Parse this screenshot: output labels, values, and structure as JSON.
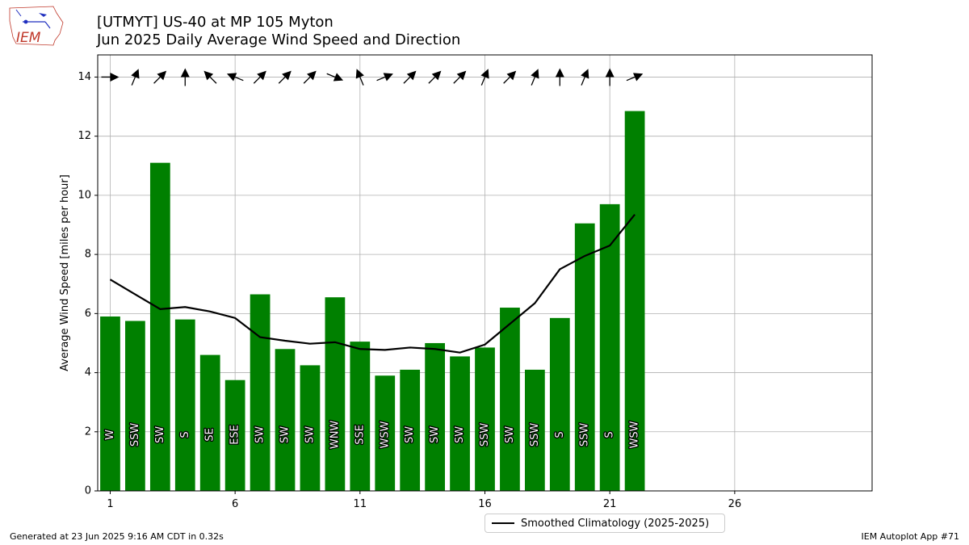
{
  "header": {
    "title_line1": "[UTMYT] US-40 at MP 105 Myton",
    "title_line2": "Jun 2025 Daily Average Wind Speed and Direction"
  },
  "logo": {
    "text": "IEM"
  },
  "footer": {
    "generated": "Generated at 23 Jun 2025 9:16 AM CDT in 0.32s",
    "app": "IEM Autoplot App #71"
  },
  "legend": {
    "label": "Smoothed Climatology (2025-2025)"
  },
  "colors": {
    "bar": "#008000",
    "line": "#000000",
    "grid": "#b0b0b0"
  },
  "chart_data": {
    "type": "bar",
    "title": "[UTMYT] US-40 at MP 105 Myton / Jun 2025 Daily Average Wind Speed and Direction",
    "xlabel": "",
    "ylabel": "Average Wind Speed [miles per hour]",
    "xlim": [
      0.5,
      31.5
    ],
    "ylim": [
      0,
      14.75
    ],
    "xticks": [
      1,
      6,
      11,
      16,
      21,
      26
    ],
    "yticks": [
      0,
      2,
      4,
      6,
      8,
      10,
      12,
      14
    ],
    "grid": true,
    "legend_position": "bottom-center",
    "days": [
      1,
      2,
      3,
      4,
      5,
      6,
      7,
      8,
      9,
      10,
      11,
      12,
      13,
      14,
      15,
      16,
      17,
      18,
      19,
      20,
      21,
      22
    ],
    "speeds": [
      5.9,
      5.75,
      11.1,
      5.8,
      4.6,
      3.75,
      6.65,
      4.8,
      4.25,
      6.55,
      5.05,
      3.9,
      4.1,
      5.0,
      4.55,
      4.85,
      6.2,
      4.1,
      5.85,
      9.05,
      9.7,
      12.85
    ],
    "directions": [
      "W",
      "SSW",
      "SW",
      "S",
      "SE",
      "ESE",
      "SW",
      "SW",
      "SW",
      "WNW",
      "SSE",
      "WSW",
      "SW",
      "SW",
      "SW",
      "SSW",
      "SW",
      "SSW",
      "S",
      "SSW",
      "S",
      "WSW"
    ],
    "series": [
      {
        "name": "Smoothed Climatology (2025-2025)",
        "type": "line",
        "x": [
          1,
          2,
          3,
          4,
          5,
          6,
          7,
          8,
          9,
          10,
          11,
          12,
          13,
          14,
          15,
          16,
          17,
          18,
          19,
          20,
          21,
          22
        ],
        "values": [
          7.15,
          6.65,
          6.15,
          6.22,
          6.07,
          5.85,
          5.2,
          5.08,
          4.98,
          5.03,
          4.8,
          4.77,
          4.85,
          4.8,
          4.68,
          4.95,
          5.65,
          6.35,
          7.5,
          7.95,
          8.3,
          9.35
        ]
      }
    ]
  }
}
